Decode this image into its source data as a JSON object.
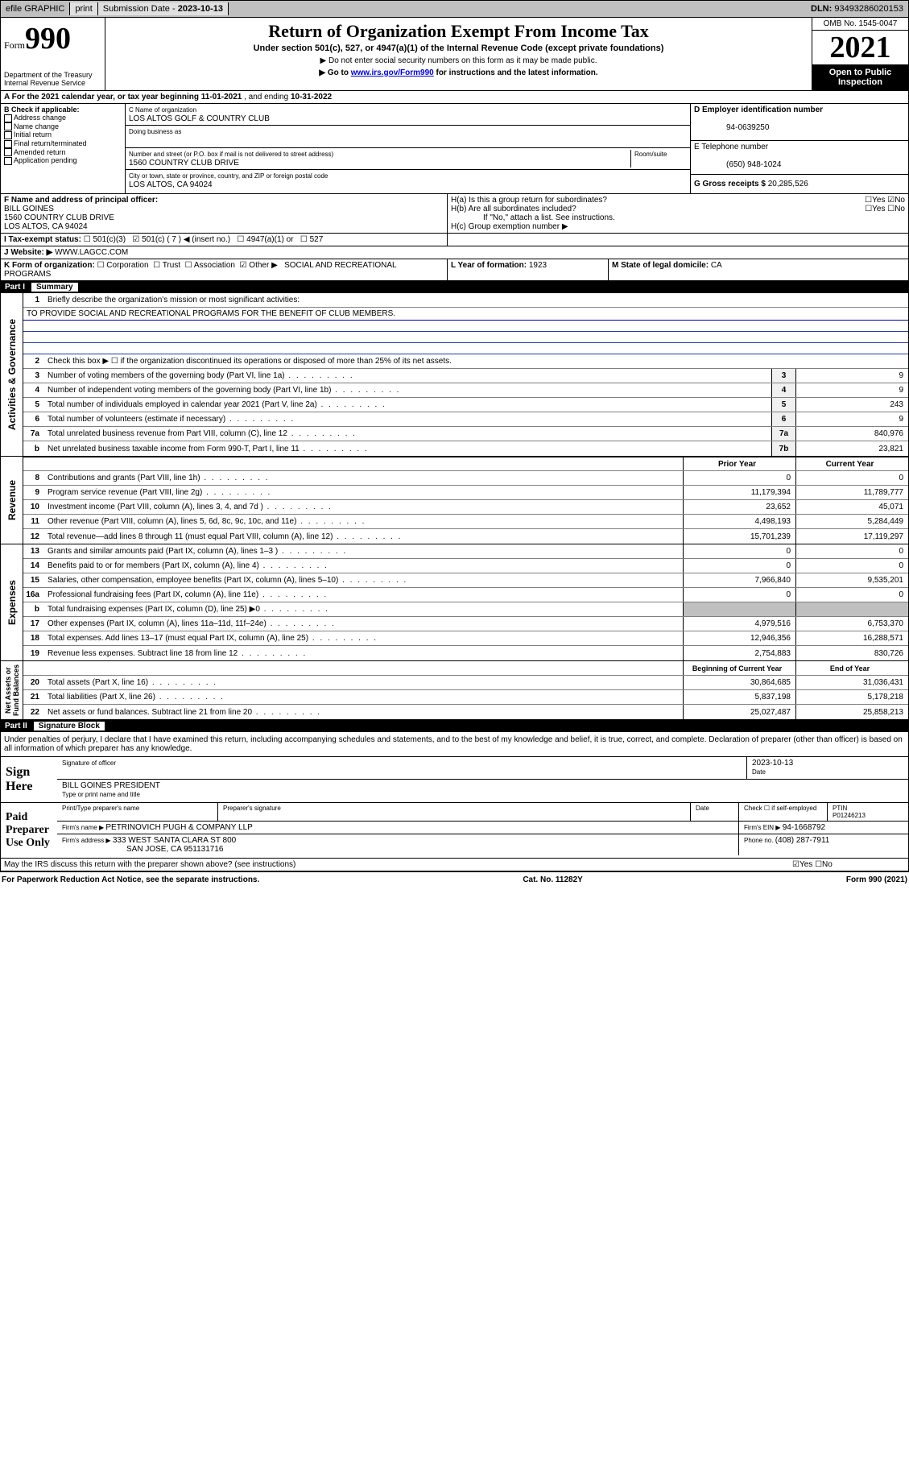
{
  "topbar": {
    "efile": "efile GRAPHIC",
    "print": "print",
    "sub_label": "Submission Date - ",
    "sub_date": "2023-10-13",
    "dln_label": "DLN: ",
    "dln": "93493286020153"
  },
  "header": {
    "form_prefix": "Form",
    "form_num": "990",
    "dept": "Department of the Treasury\nInternal Revenue Service",
    "title": "Return of Organization Exempt From Income Tax",
    "subtitle": "Under section 501(c), 527, or 4947(a)(1) of the Internal Revenue Code (except private foundations)",
    "note1": "▶ Do not enter social security numbers on this form as it may be made public.",
    "note2_pre": "▶ Go to ",
    "note2_link": "www.irs.gov/Form990",
    "note2_post": " for instructions and the latest information.",
    "omb": "OMB No. 1545-0047",
    "year": "2021",
    "inspect": "Open to Public Inspection"
  },
  "period": {
    "label_a": "A For the 2021 calendar year, or tax year beginning ",
    "begin": "11-01-2021",
    "mid": " , and ending ",
    "end": "10-31-2022"
  },
  "box_b": {
    "label": "B Check if applicable:",
    "items": [
      "Address change",
      "Name change",
      "Initial return",
      "Final return/terminated",
      "Amended return",
      "Application pending"
    ]
  },
  "box_c": {
    "name_label": "C Name of organization",
    "name": "LOS ALTOS GOLF & COUNTRY CLUB",
    "dba_label": "Doing business as",
    "street_label": "Number and street (or P.O. box if mail is not delivered to street address)",
    "room_label": "Room/suite",
    "street": "1560 COUNTRY CLUB DRIVE",
    "city_label": "City or town, state or province, country, and ZIP or foreign postal code",
    "city": "LOS ALTOS, CA  94024"
  },
  "box_d": {
    "label": "D Employer identification number",
    "ein": "94-0639250"
  },
  "box_e": {
    "label": "E Telephone number",
    "phone": "(650) 948-1024"
  },
  "box_g": {
    "label": "G Gross receipts $ ",
    "amount": "20,285,526"
  },
  "box_f": {
    "label": "F Name and address of principal officer:",
    "name": "BILL GOINES",
    "addr1": "1560 COUNTRY CLUB DRIVE",
    "addr2": "LOS ALTOS, CA  94024"
  },
  "box_h": {
    "ha": "H(a)  Is this a group return for subordinates?",
    "ha_ans": "No",
    "hb": "H(b)  Are all subordinates included?",
    "hb_note": "If \"No,\" attach a list. See instructions.",
    "hc": "H(c)  Group exemption number ▶"
  },
  "box_i": {
    "label": "I   Tax-exempt status:",
    "opts": [
      "501(c)(3)",
      "501(c) ( 7 ) ◀ (insert no.)",
      "4947(a)(1) or",
      "527"
    ],
    "checked_idx": 1
  },
  "box_j": {
    "label": "J   Website: ▶ ",
    "site": "WWW.LAGCC.COM"
  },
  "box_k": {
    "label": "K Form of organization:",
    "opts": [
      "Corporation",
      "Trust",
      "Association",
      "Other ▶"
    ],
    "other": "SOCIAL AND RECREATIONAL PROGRAMS",
    "checked_idx": 3
  },
  "box_l": {
    "label": "L Year of formation: ",
    "val": "1923"
  },
  "box_m": {
    "label": "M State of legal domicile: ",
    "val": "CA"
  },
  "part1": {
    "name": "Part I",
    "title": "Summary"
  },
  "summary": {
    "q1": "Briefly describe the organization's mission or most significant activities:",
    "mission": "TO PROVIDE SOCIAL AND RECREATIONAL PROGRAMS FOR THE BENEFIT OF CLUB MEMBERS.",
    "q2": "Check this box ▶ ☐  if the organization discontinued its operations or disposed of more than 25% of its net assets.",
    "lines_single": [
      {
        "n": "3",
        "t": "Number of voting members of the governing body (Part VI, line 1a)",
        "box": "3",
        "v": "9"
      },
      {
        "n": "4",
        "t": "Number of independent voting members of the governing body (Part VI, line 1b)",
        "box": "4",
        "v": "9"
      },
      {
        "n": "5",
        "t": "Total number of individuals employed in calendar year 2021 (Part V, line 2a)",
        "box": "5",
        "v": "243"
      },
      {
        "n": "6",
        "t": "Total number of volunteers (estimate if necessary)",
        "box": "6",
        "v": "9"
      },
      {
        "n": "7a",
        "t": "Total unrelated business revenue from Part VIII, column (C), line 12",
        "box": "7a",
        "v": "840,976"
      },
      {
        "n": "b",
        "t": "Net unrelated business taxable income from Form 990-T, Part I, line 11",
        "box": "7b",
        "v": "23,821"
      }
    ],
    "col_hdr": {
      "prior": "Prior Year",
      "current": "Current Year"
    },
    "revenue": [
      {
        "n": "8",
        "t": "Contributions and grants (Part VIII, line 1h)",
        "p": "0",
        "c": "0"
      },
      {
        "n": "9",
        "t": "Program service revenue (Part VIII, line 2g)",
        "p": "11,179,394",
        "c": "11,789,777"
      },
      {
        "n": "10",
        "t": "Investment income (Part VIII, column (A), lines 3, 4, and 7d )",
        "p": "23,652",
        "c": "45,071"
      },
      {
        "n": "11",
        "t": "Other revenue (Part VIII, column (A), lines 5, 6d, 8c, 9c, 10c, and 11e)",
        "p": "4,498,193",
        "c": "5,284,449"
      },
      {
        "n": "12",
        "t": "Total revenue—add lines 8 through 11 (must equal Part VIII, column (A), line 12)",
        "p": "15,701,239",
        "c": "17,119,297"
      }
    ],
    "expenses": [
      {
        "n": "13",
        "t": "Grants and similar amounts paid (Part IX, column (A), lines 1–3 )",
        "p": "0",
        "c": "0"
      },
      {
        "n": "14",
        "t": "Benefits paid to or for members (Part IX, column (A), line 4)",
        "p": "0",
        "c": "0"
      },
      {
        "n": "15",
        "t": "Salaries, other compensation, employee benefits (Part IX, column (A), lines 5–10)",
        "p": "7,966,840",
        "c": "9,535,201"
      },
      {
        "n": "16a",
        "t": "Professional fundraising fees (Part IX, column (A), line 11e)",
        "p": "0",
        "c": "0"
      },
      {
        "n": "b",
        "t": "Total fundraising expenses (Part IX, column (D), line 25) ▶0",
        "p": "",
        "c": "",
        "shade": true
      },
      {
        "n": "17",
        "t": "Other expenses (Part IX, column (A), lines 11a–11d, 11f–24e)",
        "p": "4,979,516",
        "c": "6,753,370"
      },
      {
        "n": "18",
        "t": "Total expenses. Add lines 13–17 (must equal Part IX, column (A), line 25)",
        "p": "12,946,356",
        "c": "16,288,571"
      },
      {
        "n": "19",
        "t": "Revenue less expenses. Subtract line 18 from line 12",
        "p": "2,754,883",
        "c": "830,726"
      }
    ],
    "net_hdr": {
      "prior": "Beginning of Current Year",
      "current": "End of Year"
    },
    "netassets": [
      {
        "n": "20",
        "t": "Total assets (Part X, line 16)",
        "p": "30,864,685",
        "c": "31,036,431"
      },
      {
        "n": "21",
        "t": "Total liabilities (Part X, line 26)",
        "p": "5,837,198",
        "c": "5,178,218"
      },
      {
        "n": "22",
        "t": "Net assets or fund balances. Subtract line 21 from line 20",
        "p": "25,027,487",
        "c": "25,858,213"
      }
    ],
    "side_labels": {
      "gov": "Activities & Governance",
      "rev": "Revenue",
      "exp": "Expenses",
      "net": "Net Assets or\nFund Balances"
    }
  },
  "part2": {
    "name": "Part II",
    "title": "Signature Block"
  },
  "sig": {
    "penalty": "Under penalties of perjury, I declare that I have examined this return, including accompanying schedules and statements, and to the best of my knowledge and belief, it is true, correct, and complete. Declaration of preparer (other than officer) is based on all information of which preparer has any knowledge.",
    "sign_here": "Sign Here",
    "sig_officer": "Signature of officer",
    "sig_date": "2023-10-13",
    "date_lbl": "Date",
    "officer_name": "BILL GOINES  PRESIDENT",
    "type_name": "Type or print name and title",
    "paid": "Paid Preparer Use Only",
    "prep_name_lbl": "Print/Type preparer's name",
    "prep_sig_lbl": "Preparer's signature",
    "prep_date_lbl": "Date",
    "check_lbl": "Check ☐ if self-employed",
    "ptin_lbl": "PTIN",
    "ptin": "P01246213",
    "firm_name_lbl": "Firm's name      ▶ ",
    "firm_name": "PETRINOVICH PUGH & COMPANY LLP",
    "firm_ein_lbl": "Firm's EIN ▶ ",
    "firm_ein": "94-1668792",
    "firm_addr_lbl": "Firm's address ▶ ",
    "firm_addr1": "333 WEST SANTA CLARA ST 800",
    "firm_addr2": "SAN JOSE, CA  951131716",
    "firm_phone_lbl": "Phone no. ",
    "firm_phone": "(408) 287-7911",
    "discuss": "May the IRS discuss this return with the preparer shown above? (see instructions)",
    "discuss_ans": "Yes"
  },
  "footer": {
    "left": "For Paperwork Reduction Act Notice, see the separate instructions.",
    "mid": "Cat. No. 11282Y",
    "right": "Form 990 (2021)"
  },
  "colors": {
    "link": "#0000cc",
    "shade": "#c0c0c0",
    "black": "#000000"
  }
}
